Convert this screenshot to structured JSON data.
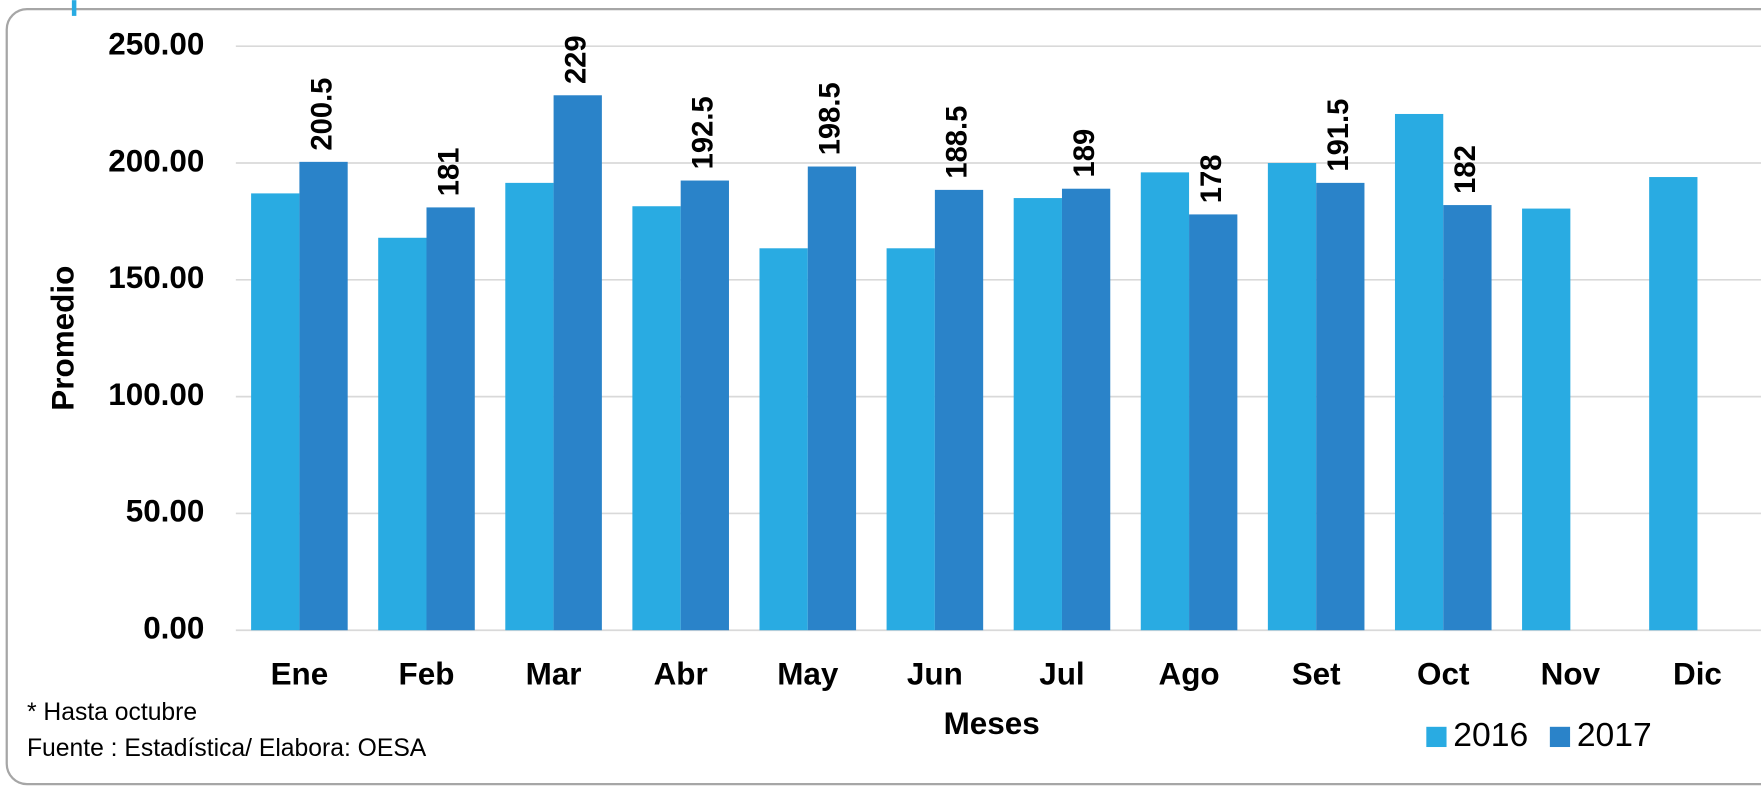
{
  "chart_data": {
    "type": "bar",
    "categories": [
      "Ene",
      "Feb",
      "Mar",
      "Abr",
      "May",
      "Jun",
      "Jul",
      "Ago",
      "Set",
      "Oct",
      "Nov",
      "Dic"
    ],
    "series": [
      {
        "name": "2016",
        "color": "#29abe2",
        "values": [
          187,
          168,
          191.5,
          181.5,
          163.5,
          163.5,
          185,
          196,
          200,
          221,
          180.5,
          194
        ]
      },
      {
        "name": "2017",
        "color": "#2a83c9",
        "values": [
          200.5,
          181,
          229,
          192.5,
          198.5,
          188.5,
          189,
          178,
          191.5,
          182,
          null,
          null
        ],
        "data_labels": true
      }
    ],
    "ylim": [
      0,
      250
    ],
    "yticks": [
      {
        "value": 0,
        "label": "0.00"
      },
      {
        "value": 50,
        "label": "50.00"
      },
      {
        "value": 100,
        "label": "100.00"
      },
      {
        "value": 150,
        "label": "150.00"
      },
      {
        "value": 200,
        "label": "200.00"
      },
      {
        "value": 250,
        "label": "250.00"
      }
    ],
    "grid": true,
    "y_label": "Promedio",
    "x_label": "Meses",
    "notes": [
      "* Hasta octubre",
      "Fuente : Estadística/ Elabora: OESA"
    ],
    "legend": "bottom-right"
  }
}
